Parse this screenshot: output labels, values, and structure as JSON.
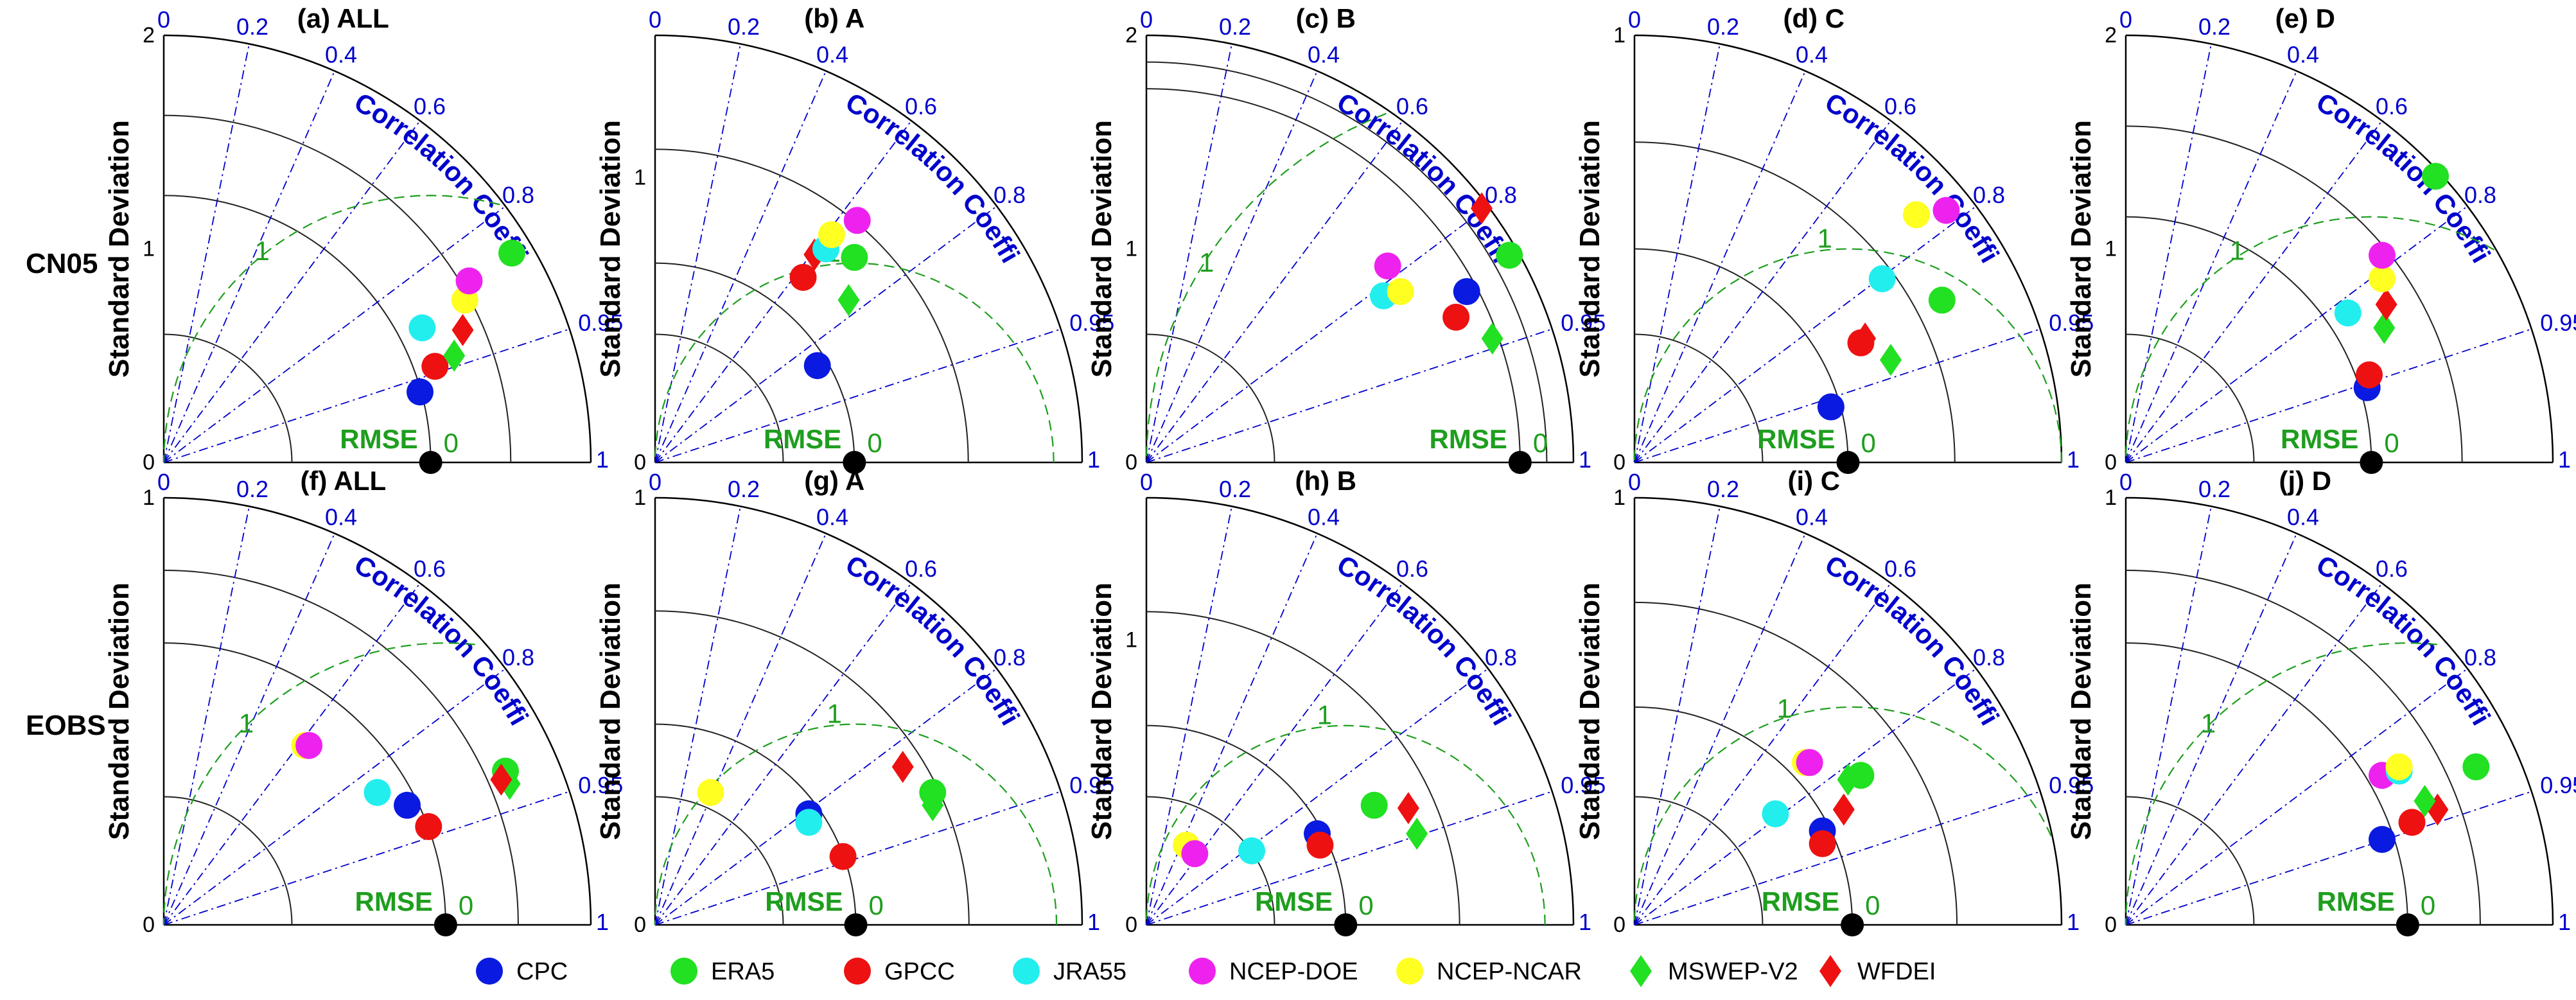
{
  "figure": {
    "ylabel": "Standard Deviation",
    "corr_label": "Correlation Coefficient",
    "rmse_label": "RMSE",
    "rmse_zero": "0",
    "ref_rmse_label": "1",
    "row_labels": [
      "CN05",
      "EOBS"
    ],
    "corr_ticks": [
      "0",
      "0.2",
      "0.4",
      "0.6",
      "0.8",
      "0.95",
      "1"
    ],
    "colors": {
      "CPC": "#0a1ae0",
      "ERA5": "#22e022",
      "GPCC": "#ee1111",
      "JRA55": "#22eeee",
      "NCEP-DOE": "#ee22ee",
      "NCEP-NCAR": "#ffff22",
      "MSWEP-V2": "#22e022",
      "WFDEI": "#ee1111",
      "axis": "#000000",
      "corr_lines": "#0000cc",
      "rmse": "#1e9e1e",
      "ref": "#000000"
    }
  },
  "legend": {
    "items": [
      {
        "name": "CPC",
        "marker": "circle"
      },
      {
        "name": "ERA5",
        "marker": "circle"
      },
      {
        "name": "GPCC",
        "marker": "circle"
      },
      {
        "name": "JRA55",
        "marker": "circle"
      },
      {
        "name": "NCEP-DOE",
        "marker": "circle"
      },
      {
        "name": "NCEP-NCAR",
        "marker": "circle"
      },
      {
        "name": "MSWEP-V2",
        "marker": "diamond"
      },
      {
        "name": "WFDEI",
        "marker": "diamond"
      }
    ]
  },
  "chart_data": [
    {
      "type": "taylor",
      "title": "(a) ALL",
      "row": "CN05",
      "smax": 2,
      "ref_std": 1.25,
      "sd_ticks": [
        "0",
        "1",
        "2"
      ],
      "sd_tick_values": [
        0,
        1,
        2
      ],
      "points": [
        {
          "name": "CPC",
          "x": 1.2,
          "y": 0.33
        },
        {
          "name": "GPCC",
          "x": 1.27,
          "y": 0.45
        },
        {
          "name": "MSWEP-V2",
          "x": 1.36,
          "y": 0.5
        },
        {
          "name": "WFDEI",
          "x": 1.4,
          "y": 0.62
        },
        {
          "name": "JRA55",
          "x": 1.21,
          "y": 0.63
        },
        {
          "name": "NCEP-NCAR",
          "x": 1.41,
          "y": 0.76
        },
        {
          "name": "NCEP-DOE",
          "x": 1.43,
          "y": 0.85
        },
        {
          "name": "ERA5",
          "x": 1.63,
          "y": 0.98
        }
      ]
    },
    {
      "type": "taylor",
      "title": "(b) A",
      "row": "CN05",
      "smax": 1.5,
      "ref_std": 0.7,
      "sd_ticks": [
        "0",
        "1"
      ],
      "sd_tick_values": [
        0,
        1
      ],
      "points": [
        {
          "name": "CPC",
          "x": 0.57,
          "y": 0.34
        },
        {
          "name": "GPCC",
          "x": 0.52,
          "y": 0.65
        },
        {
          "name": "WFDEI",
          "x": 0.56,
          "y": 0.73
        },
        {
          "name": "JRA55",
          "x": 0.6,
          "y": 0.75
        },
        {
          "name": "NCEP-NCAR",
          "x": 0.62,
          "y": 0.8
        },
        {
          "name": "NCEP-DOE",
          "x": 0.71,
          "y": 0.85
        },
        {
          "name": "ERA5",
          "x": 0.7,
          "y": 0.72
        },
        {
          "name": "MSWEP-V2",
          "x": 0.68,
          "y": 0.57
        }
      ]
    },
    {
      "type": "taylor",
      "title": "(c) B",
      "row": "CN05",
      "smax": 2,
      "ref_std": 1.75,
      "sd_ticks": [
        "0",
        "1",
        "2"
      ],
      "sd_tick_values": [
        0,
        1,
        2
      ],
      "points": [
        {
          "name": "JRA55",
          "x": 1.11,
          "y": 0.78
        },
        {
          "name": "NCEP-DOE",
          "x": 1.13,
          "y": 0.92
        },
        {
          "name": "NCEP-NCAR",
          "x": 1.19,
          "y": 0.8
        },
        {
          "name": "GPCC",
          "x": 1.45,
          "y": 0.68
        },
        {
          "name": "CPC",
          "x": 1.5,
          "y": 0.8
        },
        {
          "name": "WFDEI",
          "x": 1.57,
          "y": 1.19
        },
        {
          "name": "ERA5",
          "x": 1.7,
          "y": 0.97
        },
        {
          "name": "MSWEP-V2",
          "x": 1.62,
          "y": 0.58
        }
      ]
    },
    {
      "type": "taylor",
      "title": "(d) C",
      "row": "CN05",
      "smax": 1,
      "ref_std": 0.5,
      "sd_ticks": [
        "0",
        "1"
      ],
      "sd_tick_values": [
        0,
        1
      ],
      "points": [
        {
          "name": "CPC",
          "x": 0.46,
          "y": 0.13
        },
        {
          "name": "GPCC",
          "x": 0.53,
          "y": 0.28
        },
        {
          "name": "WFDEI",
          "x": 0.54,
          "y": 0.29
        },
        {
          "name": "MSWEP-V2",
          "x": 0.6,
          "y": 0.24
        },
        {
          "name": "JRA55",
          "x": 0.58,
          "y": 0.43
        },
        {
          "name": "ERA5",
          "x": 0.72,
          "y": 0.38
        },
        {
          "name": "NCEP-NCAR",
          "x": 0.66,
          "y": 0.58
        },
        {
          "name": "NCEP-DOE",
          "x": 0.73,
          "y": 0.59
        }
      ]
    },
    {
      "type": "taylor",
      "title": "(e) D",
      "row": "CN05",
      "smax": 2,
      "ref_std": 1.15,
      "sd_ticks": [
        "0",
        "1",
        "2"
      ],
      "sd_tick_values": [
        0,
        1,
        2
      ],
      "points": [
        {
          "name": "CPC",
          "x": 1.13,
          "y": 0.35
        },
        {
          "name": "GPCC",
          "x": 1.14,
          "y": 0.41
        },
        {
          "name": "JRA55",
          "x": 1.04,
          "y": 0.7
        },
        {
          "name": "MSWEP-V2",
          "x": 1.21,
          "y": 0.63
        },
        {
          "name": "WFDEI",
          "x": 1.22,
          "y": 0.74
        },
        {
          "name": "NCEP-NCAR",
          "x": 1.2,
          "y": 0.86
        },
        {
          "name": "NCEP-DOE",
          "x": 1.2,
          "y": 0.97
        },
        {
          "name": "ERA5",
          "x": 1.45,
          "y": 1.34
        }
      ]
    },
    {
      "type": "taylor",
      "title": "(f) ALL",
      "row": "EOBS",
      "smax": 1,
      "ref_std": 0.66,
      "sd_ticks": [
        "0",
        "1"
      ],
      "sd_tick_values": [
        0,
        1
      ],
      "points": [
        {
          "name": "NCEP-NCAR",
          "x": 0.33,
          "y": 0.42
        },
        {
          "name": "NCEP-DOE",
          "x": 0.34,
          "y": 0.42
        },
        {
          "name": "JRA55",
          "x": 0.5,
          "y": 0.31
        },
        {
          "name": "CPC",
          "x": 0.57,
          "y": 0.28
        },
        {
          "name": "GPCC",
          "x": 0.62,
          "y": 0.23
        },
        {
          "name": "ERA5",
          "x": 0.8,
          "y": 0.36
        },
        {
          "name": "MSWEP-V2",
          "x": 0.81,
          "y": 0.33
        },
        {
          "name": "WFDEI",
          "x": 0.79,
          "y": 0.34
        }
      ]
    },
    {
      "type": "taylor",
      "title": "(g) A",
      "row": "EOBS",
      "smax": 1,
      "ref_std": 0.47,
      "sd_ticks": [
        "0",
        "1"
      ],
      "sd_tick_values": [
        0,
        1
      ],
      "points": [
        {
          "name": "NCEP-NCAR",
          "x": 0.13,
          "y": 0.31
        },
        {
          "name": "CPC",
          "x": 0.36,
          "y": 0.26
        },
        {
          "name": "JRA55",
          "x": 0.36,
          "y": 0.24
        },
        {
          "name": "GPCC",
          "x": 0.44,
          "y": 0.16
        },
        {
          "name": "WFDEI",
          "x": 0.58,
          "y": 0.37
        },
        {
          "name": "ERA5",
          "x": 0.65,
          "y": 0.31
        },
        {
          "name": "MSWEP-V2",
          "x": 0.65,
          "y": 0.28
        }
      ]
    },
    {
      "type": "taylor",
      "title": "(h) B",
      "row": "EOBS",
      "smax": 1.5,
      "ref_std": 0.7,
      "sd_ticks": [
        "0",
        "1"
      ],
      "sd_tick_values": [
        0,
        1
      ],
      "points": [
        {
          "name": "NCEP-NCAR",
          "x": 0.14,
          "y": 0.28
        },
        {
          "name": "NCEP-DOE",
          "x": 0.17,
          "y": 0.25
        },
        {
          "name": "JRA55",
          "x": 0.37,
          "y": 0.26
        },
        {
          "name": "CPC",
          "x": 0.6,
          "y": 0.32
        },
        {
          "name": "GPCC",
          "x": 0.61,
          "y": 0.28
        },
        {
          "name": "ERA5",
          "x": 0.8,
          "y": 0.42
        },
        {
          "name": "WFDEI",
          "x": 0.92,
          "y": 0.41
        },
        {
          "name": "MSWEP-V2",
          "x": 0.95,
          "y": 0.32
        }
      ]
    },
    {
      "type": "taylor",
      "title": "(i) C",
      "row": "EOBS",
      "smax": 1,
      "ref_std": 0.51,
      "sd_ticks": [
        "0",
        "1"
      ],
      "sd_tick_values": [
        0,
        1
      ],
      "points": [
        {
          "name": "JRA55",
          "x": 0.33,
          "y": 0.26
        },
        {
          "name": "CPC",
          "x": 0.44,
          "y": 0.22
        },
        {
          "name": "GPCC",
          "x": 0.44,
          "y": 0.19
        },
        {
          "name": "WFDEI",
          "x": 0.49,
          "y": 0.27
        },
        {
          "name": "NCEP-NCAR",
          "x": 0.4,
          "y": 0.38
        },
        {
          "name": "NCEP-DOE",
          "x": 0.41,
          "y": 0.38
        },
        {
          "name": "MSWEP-V2",
          "x": 0.5,
          "y": 0.34
        },
        {
          "name": "ERA5",
          "x": 0.53,
          "y": 0.35
        }
      ]
    },
    {
      "type": "taylor",
      "title": "(j) D",
      "row": "EOBS",
      "smax": 1,
      "ref_std": 0.66,
      "sd_ticks": [
        "0",
        "1"
      ],
      "sd_tick_values": [
        0,
        1
      ],
      "points": [
        {
          "name": "CPC",
          "x": 0.6,
          "y": 0.2
        },
        {
          "name": "GPCC",
          "x": 0.67,
          "y": 0.24
        },
        {
          "name": "WFDEI",
          "x": 0.73,
          "y": 0.27
        },
        {
          "name": "MSWEP-V2",
          "x": 0.7,
          "y": 0.29
        },
        {
          "name": "NCEP-DOE",
          "x": 0.6,
          "y": 0.35
        },
        {
          "name": "JRA55",
          "x": 0.64,
          "y": 0.36
        },
        {
          "name": "NCEP-NCAR",
          "x": 0.64,
          "y": 0.37
        },
        {
          "name": "ERA5",
          "x": 0.82,
          "y": 0.37
        }
      ]
    }
  ]
}
